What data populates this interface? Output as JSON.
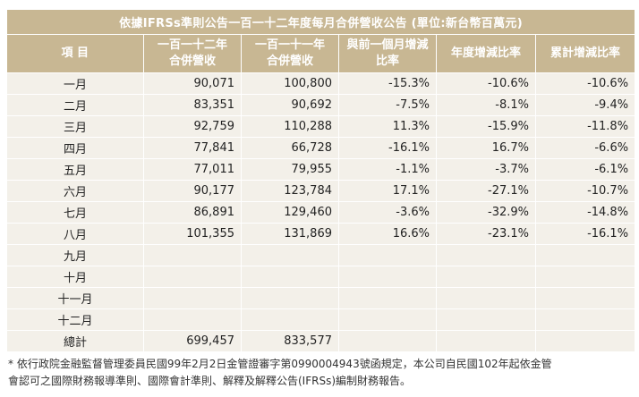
{
  "title": "依據IFRSs準則公告一百一十二年度每月合併營收公告 (單位:新台幣百萬元)",
  "headers": {
    "item": "項 目",
    "col1": [
      "一百一十二年",
      "合併營收"
    ],
    "col2": [
      "一百一十一年",
      "合併營收"
    ],
    "col3": [
      "與前一個月增減",
      "比率"
    ],
    "col4": "年度增減比率",
    "col5": "累計增減比率"
  },
  "rows": [
    {
      "month": "一月",
      "rev112": "90,071",
      "rev111": "100,800",
      "mom": "-15.3%",
      "yoy": "-10.6%",
      "cum": "-10.6%"
    },
    {
      "month": "二月",
      "rev112": "83,351",
      "rev111": "90,692",
      "mom": "-7.5%",
      "yoy": "-8.1%",
      "cum": "-9.4%"
    },
    {
      "month": "三月",
      "rev112": "92,759",
      "rev111": "110,288",
      "mom": "11.3%",
      "yoy": "-15.9%",
      "cum": "-11.8%"
    },
    {
      "month": "四月",
      "rev112": "77,841",
      "rev111": "66,728",
      "mom": "-16.1%",
      "yoy": "16.7%",
      "cum": "-6.6%"
    },
    {
      "month": "五月",
      "rev112": "77,011",
      "rev111": "79,955",
      "mom": "-1.1%",
      "yoy": "-3.7%",
      "cum": "-6.1%"
    },
    {
      "month": "六月",
      "rev112": "90,177",
      "rev111": "123,784",
      "mom": "17.1%",
      "yoy": "-27.1%",
      "cum": "-10.7%"
    },
    {
      "month": "七月",
      "rev112": "86,891",
      "rev111": "129,460",
      "mom": "-3.6%",
      "yoy": "-32.9%",
      "cum": "-14.8%"
    },
    {
      "month": "八月",
      "rev112": "101,355",
      "rev111": "131,869",
      "mom": "16.6%",
      "yoy": "-23.1%",
      "cum": "-16.1%"
    },
    {
      "month": "九月",
      "rev112": "",
      "rev111": "",
      "mom": "",
      "yoy": "",
      "cum": ""
    },
    {
      "month": "十月",
      "rev112": "",
      "rev111": "",
      "mom": "",
      "yoy": "",
      "cum": ""
    },
    {
      "month": "十一月",
      "rev112": "",
      "rev111": "",
      "mom": "",
      "yoy": "",
      "cum": ""
    },
    {
      "month": "十二月",
      "rev112": "",
      "rev111": "",
      "mom": "",
      "yoy": "",
      "cum": ""
    }
  ],
  "total": {
    "month": "總計",
    "rev112": "699,457",
    "rev111": "833,577",
    "mom": "",
    "yoy": "",
    "cum": ""
  },
  "note": [
    "* 依行政院金融監督管理委員民國99年2月2日金管證審字第0990004943號函規定，本公司自民國102年起依金管",
    "會認可之國際財務報導準則、國際會計準則、解釋及解釋公告(IFRSs)編制財務報告。"
  ],
  "colors": {
    "header_bg": "#c8b793",
    "row_bg": "#f3f0e9",
    "header_text": "#ffffff"
  }
}
